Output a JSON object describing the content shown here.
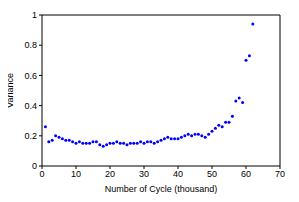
{
  "chart_data": {
    "type": "scatter",
    "x_label": "Number of Cycle (thousand)",
    "y_label": "Variance",
    "x": [
      1,
      2,
      3,
      4,
      5,
      6,
      7,
      8,
      9,
      10,
      11,
      12,
      13,
      14,
      15,
      16,
      17,
      18,
      19,
      20,
      21,
      22,
      23,
      24,
      25,
      26,
      27,
      28,
      29,
      30,
      31,
      32,
      33,
      34,
      35,
      36,
      37,
      38,
      39,
      40,
      41,
      42,
      43,
      44,
      45,
      46,
      47,
      48,
      49,
      50,
      51,
      52,
      53,
      54,
      55,
      56,
      57,
      58,
      59,
      60,
      61,
      62
    ],
    "values": [
      0.26,
      0.16,
      0.17,
      0.2,
      0.19,
      0.18,
      0.17,
      0.17,
      0.16,
      0.15,
      0.16,
      0.15,
      0.15,
      0.15,
      0.16,
      0.16,
      0.14,
      0.13,
      0.14,
      0.15,
      0.15,
      0.16,
      0.15,
      0.15,
      0.14,
      0.15,
      0.15,
      0.15,
      0.16,
      0.15,
      0.16,
      0.16,
      0.15,
      0.16,
      0.17,
      0.18,
      0.19,
      0.18,
      0.18,
      0.18,
      0.19,
      0.2,
      0.21,
      0.2,
      0.21,
      0.21,
      0.2,
      0.19,
      0.21,
      0.23,
      0.25,
      0.27,
      0.26,
      0.29,
      0.29,
      0.33,
      0.43,
      0.45,
      0.42,
      0.7,
      0.73,
      0.94
    ],
    "color": "#0000ff",
    "marker": "point",
    "xlim": [
      0,
      70
    ],
    "xticks": [
      0,
      10,
      20,
      30,
      40,
      50,
      60,
      70
    ],
    "ylim": [
      0,
      1
    ],
    "yticks": [
      0,
      0.2,
      0.4,
      0.6,
      0.8,
      1
    ],
    "grid": false
  }
}
